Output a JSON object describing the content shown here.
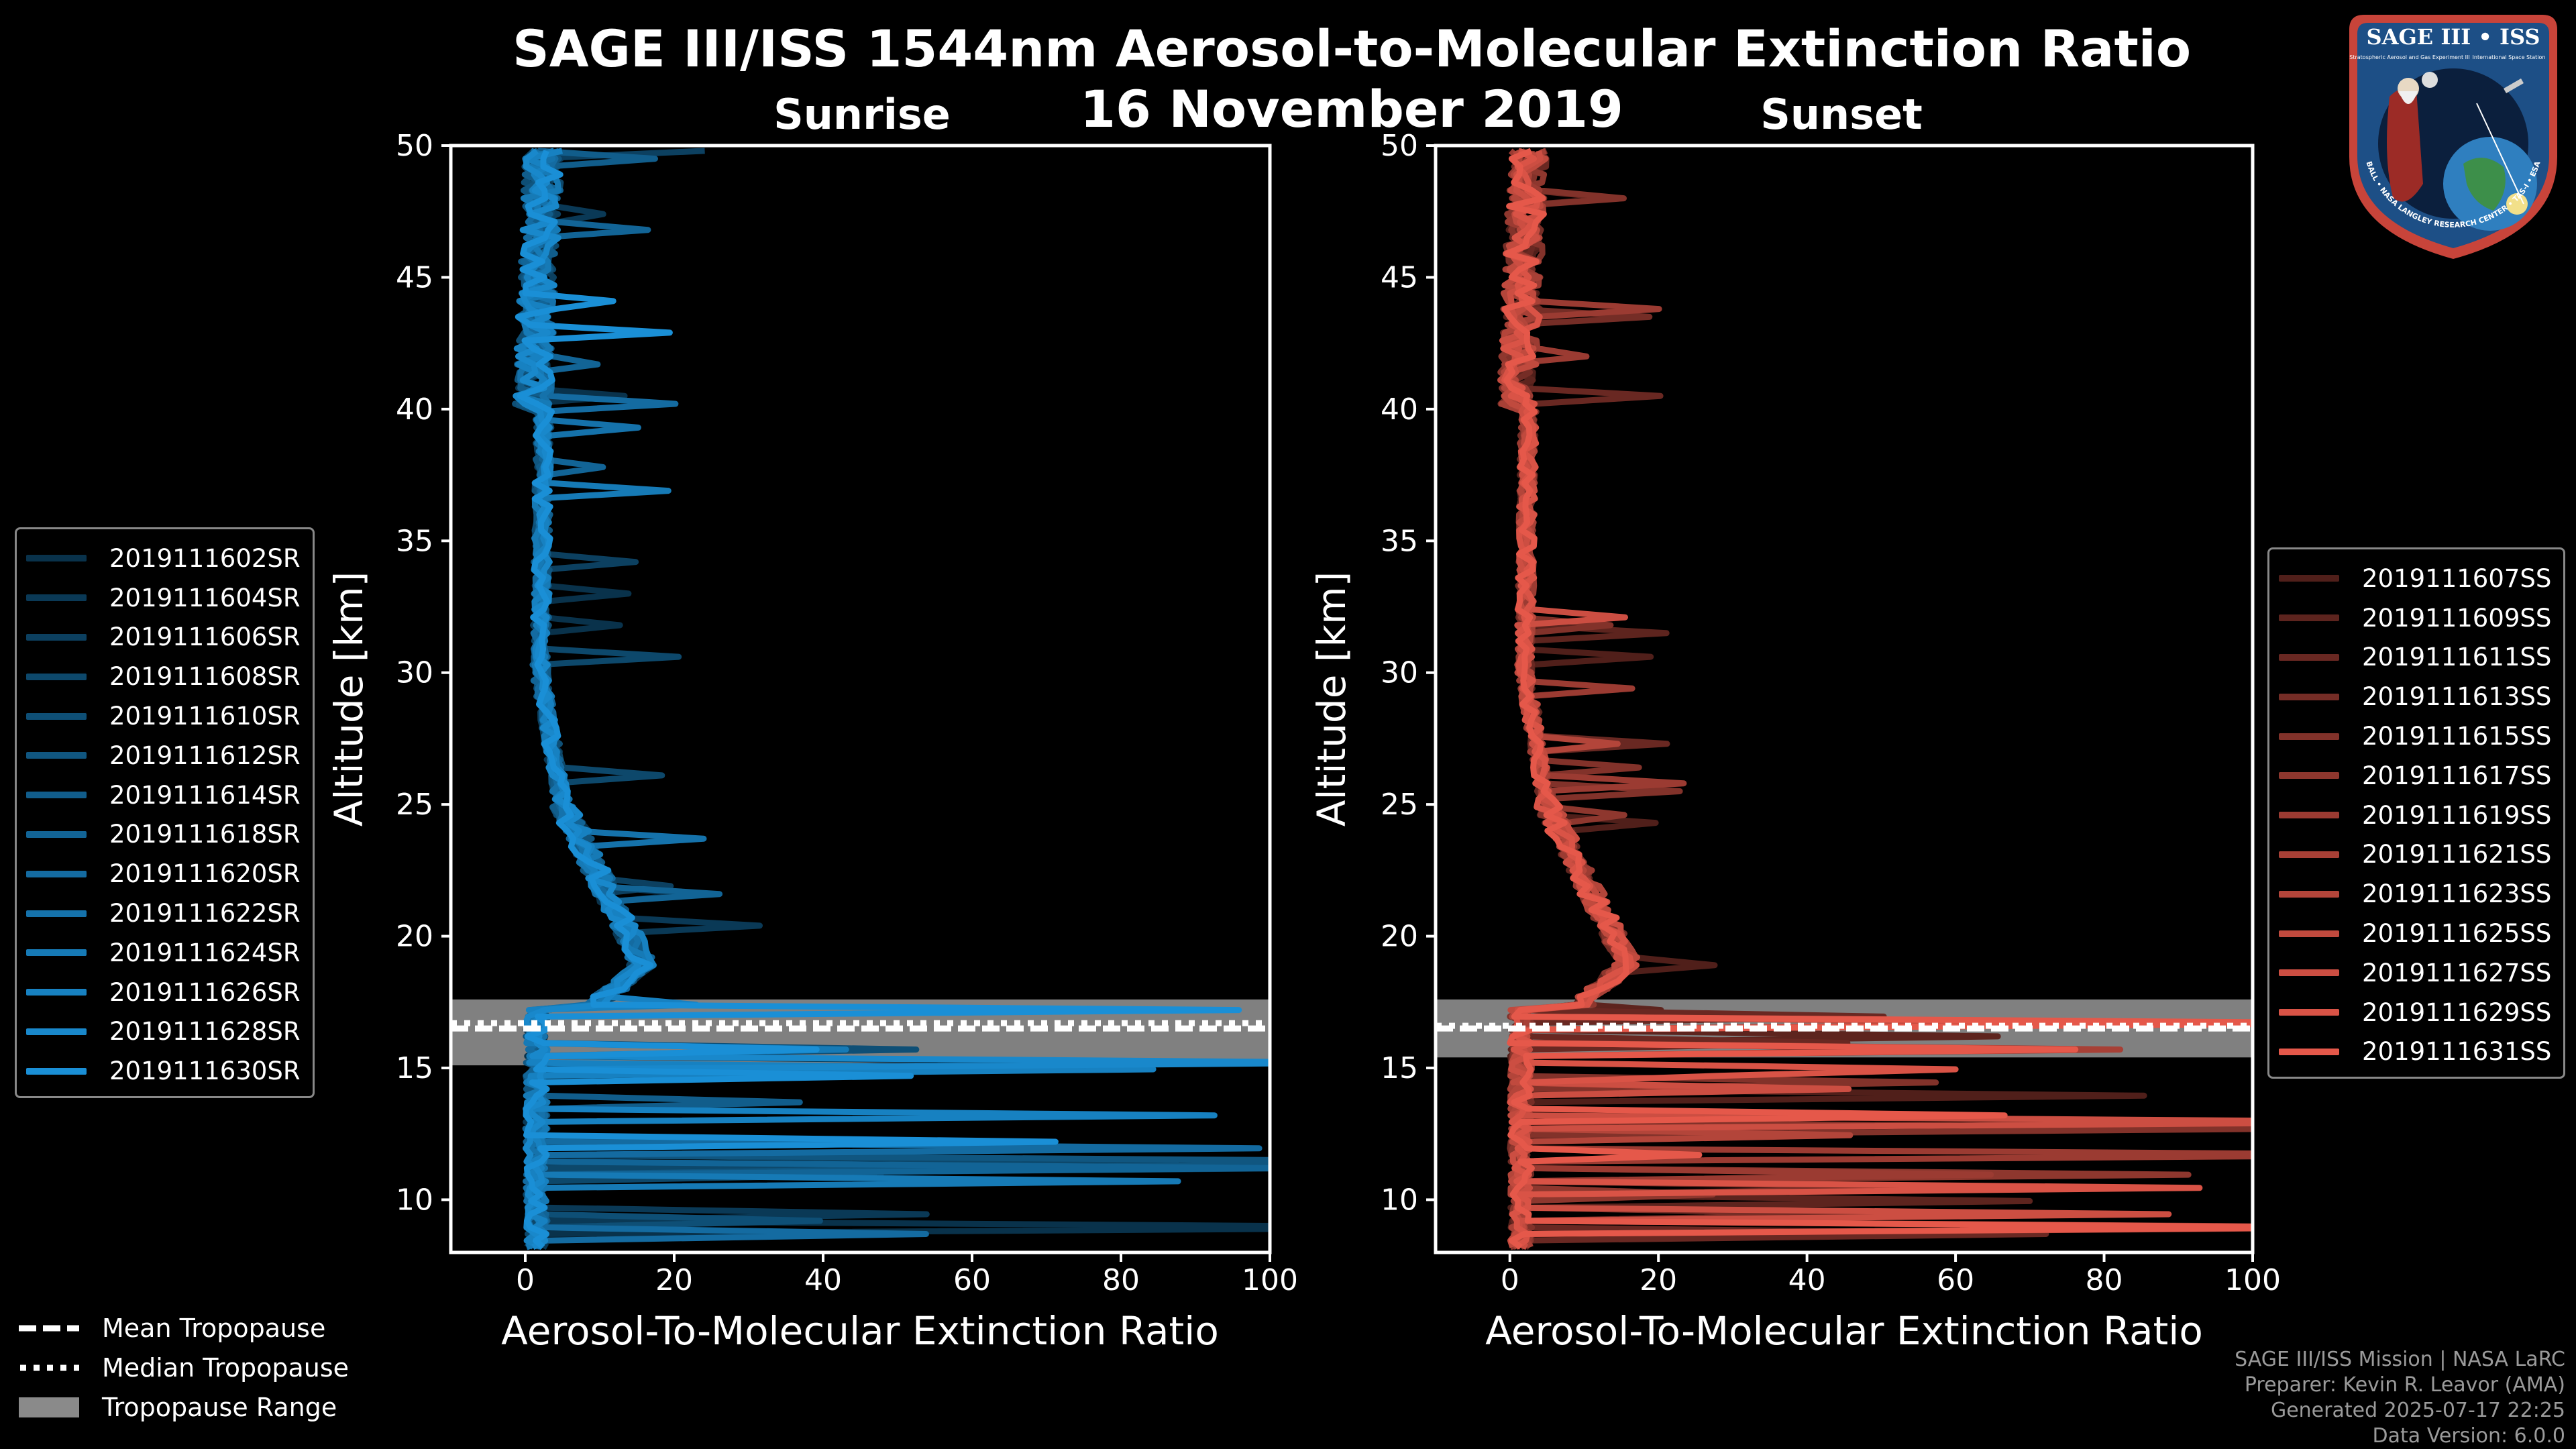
{
  "header": {
    "title": "SAGE III/ISS 1544nm Aerosol-to-Molecular Extinction Ratio",
    "date": "16 November 2019"
  },
  "colors": {
    "background": "#000000",
    "sunrise": "#1a8fd6",
    "sunset": "#e5584a",
    "tropopause_band": "#808080"
  },
  "logo": {
    "title": "SAGE III • ISS",
    "ring_text": "BALL • NASA LANGLEY RESEARCH CENTER • TAS-I • ESA",
    "subtitle_left": "Stratospheric Aerosol and Gas Experiment III",
    "subtitle_right": "International Space Station"
  },
  "footer": {
    "line1": "SAGE III/ISS Mission | NASA LaRC",
    "line2": "Preparer: Kevin R. Leavor (AMA)",
    "line3": "Generated 2025-07-17 22:25",
    "line4": "Data Version: 6.0.0"
  },
  "bottom_legend": [
    {
      "style": "dashed",
      "label": "Mean Tropopause"
    },
    {
      "style": "dotted",
      "label": "Median Tropopause"
    },
    {
      "style": "band",
      "label": "Tropopause Range"
    }
  ],
  "chart_data": [
    {
      "type": "line",
      "panel": "Sunrise",
      "title": "Sunrise",
      "xlabel": "Aerosol-To-Molecular Extinction Ratio",
      "ylabel": "Altitude [km]",
      "xlim": [
        -10,
        100
      ],
      "ylim": [
        8,
        50
      ],
      "xticks": [
        0,
        20,
        40,
        60,
        80,
        100
      ],
      "yticks": [
        10,
        15,
        20,
        25,
        30,
        35,
        40,
        45,
        50
      ],
      "tropopause": {
        "mean": 16.5,
        "median": 16.7,
        "min": 15.1,
        "max": 17.6
      },
      "series": [
        {
          "name": "2019111602SR"
        },
        {
          "name": "2019111604SR"
        },
        {
          "name": "2019111606SR"
        },
        {
          "name": "2019111608SR"
        },
        {
          "name": "2019111610SR"
        },
        {
          "name": "2019111612SR"
        },
        {
          "name": "2019111614SR"
        },
        {
          "name": "2019111618SR"
        },
        {
          "name": "2019111620SR"
        },
        {
          "name": "2019111622SR"
        },
        {
          "name": "2019111624SR"
        },
        {
          "name": "2019111626SR"
        },
        {
          "name": "2019111628SR"
        },
        {
          "name": "2019111630SR"
        }
      ]
    },
    {
      "type": "line",
      "panel": "Sunset",
      "title": "Sunset",
      "xlabel": "Aerosol-To-Molecular Extinction Ratio",
      "ylabel": "Altitude [km]",
      "xlim": [
        -10,
        100
      ],
      "ylim": [
        8,
        50
      ],
      "xticks": [
        0,
        20,
        40,
        60,
        80,
        100
      ],
      "yticks": [
        10,
        15,
        20,
        25,
        30,
        35,
        40,
        45,
        50
      ],
      "tropopause": {
        "mean": 16.5,
        "median": 16.6,
        "min": 15.4,
        "max": 17.6
      },
      "series": [
        {
          "name": "2019111607SS"
        },
        {
          "name": "2019111609SS"
        },
        {
          "name": "2019111611SS"
        },
        {
          "name": "2019111613SS"
        },
        {
          "name": "2019111615SS"
        },
        {
          "name": "2019111617SS"
        },
        {
          "name": "2019111619SS"
        },
        {
          "name": "2019111621SS"
        },
        {
          "name": "2019111623SS"
        },
        {
          "name": "2019111625SS"
        },
        {
          "name": "2019111627SS"
        },
        {
          "name": "2019111629SS"
        },
        {
          "name": "2019111631SS"
        }
      ]
    }
  ]
}
